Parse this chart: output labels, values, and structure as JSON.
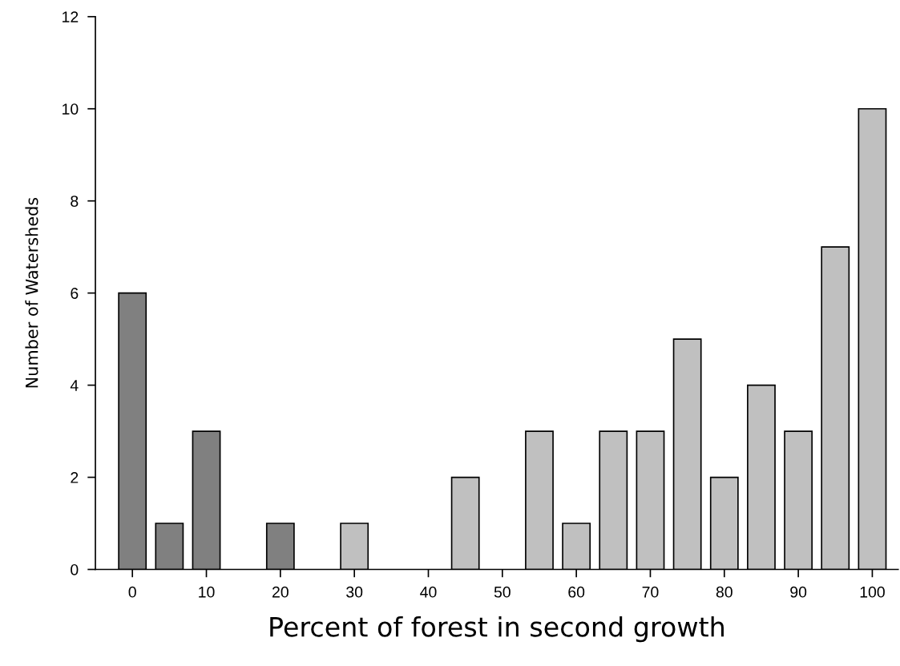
{
  "chart_data": {
    "type": "bar",
    "xlabel": "Percent of forest in second growth",
    "ylabel": "Number of Watersheds",
    "x": [
      0,
      5,
      10,
      20,
      30,
      45,
      55,
      60,
      65,
      70,
      75,
      80,
      85,
      90,
      95,
      100
    ],
    "values": [
      6,
      1,
      3,
      1,
      1,
      2,
      3,
      1,
      3,
      3,
      5,
      2,
      4,
      3,
      7,
      10
    ],
    "colors": [
      "#808080",
      "#808080",
      "#808080",
      "#808080",
      "#c0c0c0",
      "#c0c0c0",
      "#c0c0c0",
      "#c0c0c0",
      "#c0c0c0",
      "#c0c0c0",
      "#c0c0c0",
      "#c0c0c0",
      "#c0c0c0",
      "#c0c0c0",
      "#c0c0c0",
      "#c0c0c0"
    ],
    "xlim": [
      -5,
      103.5
    ],
    "xticks": [
      0,
      10,
      20,
      30,
      40,
      50,
      60,
      70,
      80,
      90,
      100
    ],
    "ylim": [
      0,
      12
    ],
    "yticks": [
      0,
      2,
      4,
      6,
      8,
      10,
      12
    ],
    "grid": false,
    "legend": false
  }
}
